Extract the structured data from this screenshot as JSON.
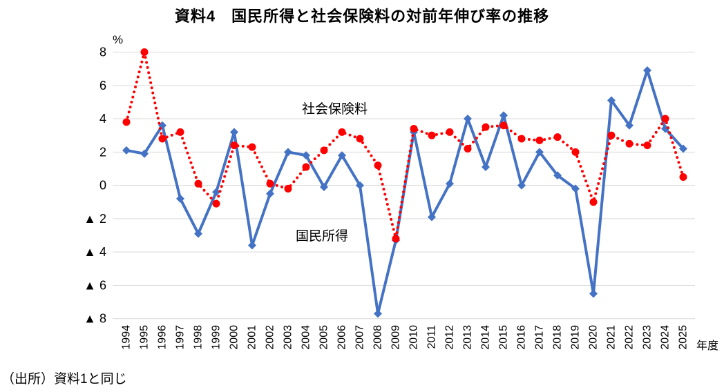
{
  "title": "資料4　国民所得と社会保険料の対前年伸び率の推移",
  "source_note": "（出所）資料1と同じ",
  "chart_data": {
    "type": "line",
    "title": "資料4　国民所得と社会保険料の対前年伸び率の推移",
    "unit_label": "%",
    "x_axis_label": "年度",
    "negative_prefix": "▲",
    "grid": true,
    "grid_color": "#d9d9d9",
    "text_color": "#000000",
    "ylim": [
      -8,
      8
    ],
    "ytick_step": 2,
    "categories": [
      1994,
      1995,
      1996,
      1997,
      1998,
      1999,
      2000,
      2001,
      2002,
      2003,
      2004,
      2005,
      2006,
      2007,
      2008,
      2009,
      2010,
      2011,
      2012,
      2013,
      2014,
      2015,
      2016,
      2017,
      2018,
      2019,
      2020,
      2021,
      2022,
      2023,
      2024,
      2025
    ],
    "series": [
      {
        "name": "国民所得",
        "color": "#4472c4",
        "line_style": "solid",
        "marker": "diamond",
        "values": [
          2.1,
          1.9,
          3.6,
          -0.8,
          -2.9,
          -0.4,
          3.2,
          -3.6,
          -0.5,
          2.0,
          1.8,
          -0.1,
          1.8,
          0.0,
          -7.7,
          -3.3,
          3.2,
          -1.9,
          0.1,
          4.0,
          1.1,
          4.2,
          0.0,
          2.0,
          0.6,
          -0.2,
          -6.5,
          5.1,
          3.6,
          6.9,
          3.4,
          2.2
        ]
      },
      {
        "name": "社会保険料",
        "color": "#ff0000",
        "line_style": "dotted",
        "marker": "circle",
        "values": [
          3.8,
          8.0,
          2.8,
          3.2,
          0.1,
          -1.1,
          2.4,
          2.3,
          0.1,
          -0.2,
          1.1,
          2.1,
          3.2,
          2.8,
          1.2,
          -3.2,
          3.4,
          3.0,
          3.2,
          2.2,
          3.5,
          3.6,
          2.8,
          2.7,
          2.9,
          2.0,
          -1.0,
          3.0,
          2.5,
          2.4,
          4.0,
          0.5
        ]
      }
    ],
    "legend_position": "inline-labels"
  }
}
